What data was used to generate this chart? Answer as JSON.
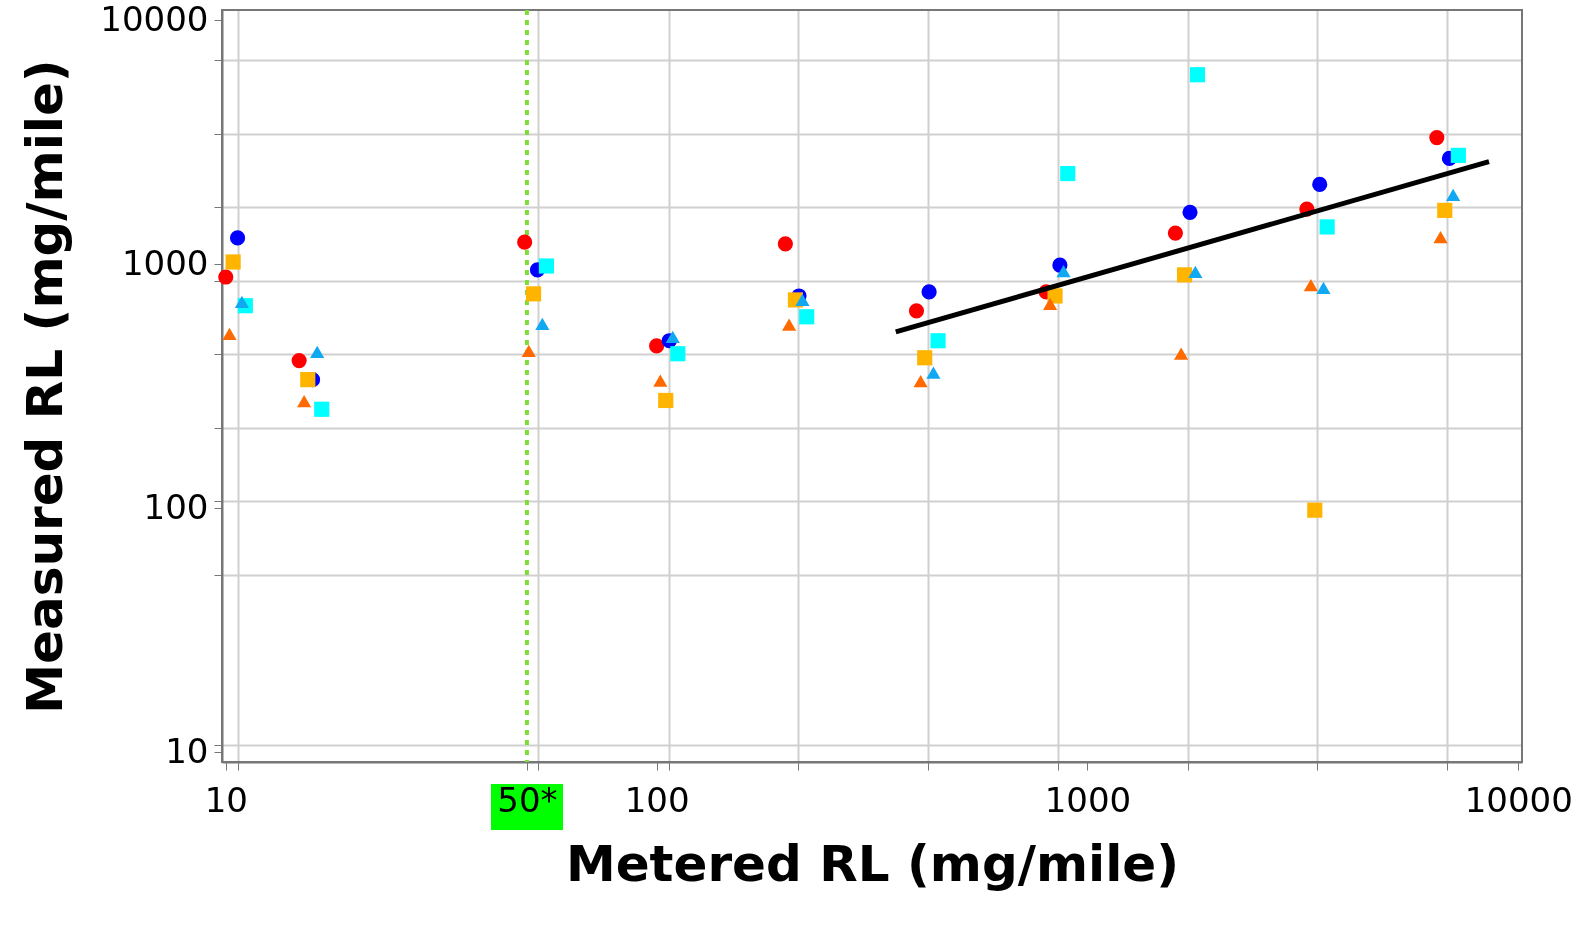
{
  "chart_data": {
    "type": "scatter",
    "xlabel": "Metered RL (mg/mile)",
    "ylabel": "Measured RL (mg/mile)",
    "log": "xy",
    "grid": true,
    "xlim": [
      9.8,
      10200
    ],
    "ylim": [
      9.1,
      11000
    ],
    "xticks": [
      10,
      {
        "value": 10.7,
        "label": null
      },
      {
        "value": 50,
        "label": "50*"
      },
      {
        "value": 53,
        "label": null
      },
      100,
      {
        "value": 107,
        "label": null
      },
      {
        "value": 213,
        "label": null
      },
      {
        "value": 427,
        "label": null
      },
      {
        "value": 853,
        "label": null
      },
      1000,
      {
        "value": 1710,
        "label": null
      },
      {
        "value": 3410,
        "label": null
      },
      {
        "value": 6830,
        "label": null
      },
      10000
    ],
    "yticks": [
      10,
      {
        "value": 10.7,
        "label": null
      },
      {
        "value": 53,
        "label": null
      },
      100,
      {
        "value": 107,
        "label": null
      },
      {
        "value": 213,
        "label": null
      },
      {
        "value": 427,
        "label": null
      },
      {
        "value": 853,
        "label": null
      },
      1000,
      {
        "value": 1710,
        "label": null
      },
      {
        "value": 3410,
        "label": null
      },
      {
        "value": 6830,
        "label": null
      },
      10000
    ],
    "ref_lines": [
      {
        "axis": "x",
        "value": 50,
        "color": "#7fdd3a",
        "line_style": "dotted"
      }
    ],
    "series": [
      {
        "type": "scatter",
        "marker": "circle",
        "color": "#ff0000",
        "x": [
          10,
          14.8,
          49.4,
          100,
          199,
          401,
          802,
          1600,
          3230,
          6470
        ],
        "values": [
          885,
          402,
          1230,
          462,
          1210,
          643,
          769,
          1340,
          1680,
          3300
        ]
      },
      {
        "type": "scatter",
        "marker": "circle",
        "color": "#0000ff",
        "x": [
          10.65,
          15.9,
          52.9,
          107,
          214,
          429,
          863,
          1730,
          3460,
          6920
        ],
        "values": [
          1280,
          336,
          946,
          485,
          740,
          769,
          990,
          1630,
          2120,
          2710
        ]
      },
      {
        "type": "scatter",
        "marker": "square",
        "color": "#ffb400",
        "x": [
          10.4,
          15.5,
          51.8,
          105,
          210,
          419,
          841,
          1680,
          3370,
          6750
        ],
        "values": [
          1020,
          336,
          755,
          276,
          713,
          413,
          740,
          903,
          98,
          1660
        ]
      },
      {
        "type": "scatter",
        "marker": "square",
        "color": "#00ffff",
        "x": [
          11.1,
          16.7,
          55.5,
          112,
          223,
          450,
          900,
          1800,
          3600,
          7260
        ],
        "values": [
          675,
          254,
          982,
          429,
          608,
          485,
          2350,
          5970,
          1420,
          2790
        ]
      },
      {
        "type": "scatter",
        "marker": "triangle",
        "color": "#ff6a00",
        "x": [
          10.2,
          15.2,
          50.5,
          102,
          203,
          410,
          819,
          1650,
          3300,
          6600
        ],
        "values": [
          517,
          274,
          441,
          333,
          564,
          331,
          687,
          429,
          820,
          1290
        ]
      },
      {
        "type": "scatter",
        "marker": "triangle",
        "color": "#10a8f0",
        "x": [
          10.9,
          16.3,
          54.3,
          109,
          218,
          439,
          880,
          1780,
          3530,
          7060
        ],
        "values": [
          700,
          437,
          569,
          503,
          713,
          359,
          935,
          930,
          798,
          1920
        ]
      },
      {
        "type": "line",
        "color": "#000000",
        "x": [
          359,
          8550
        ],
        "values": [
          527,
          2630
        ]
      }
    ]
  }
}
